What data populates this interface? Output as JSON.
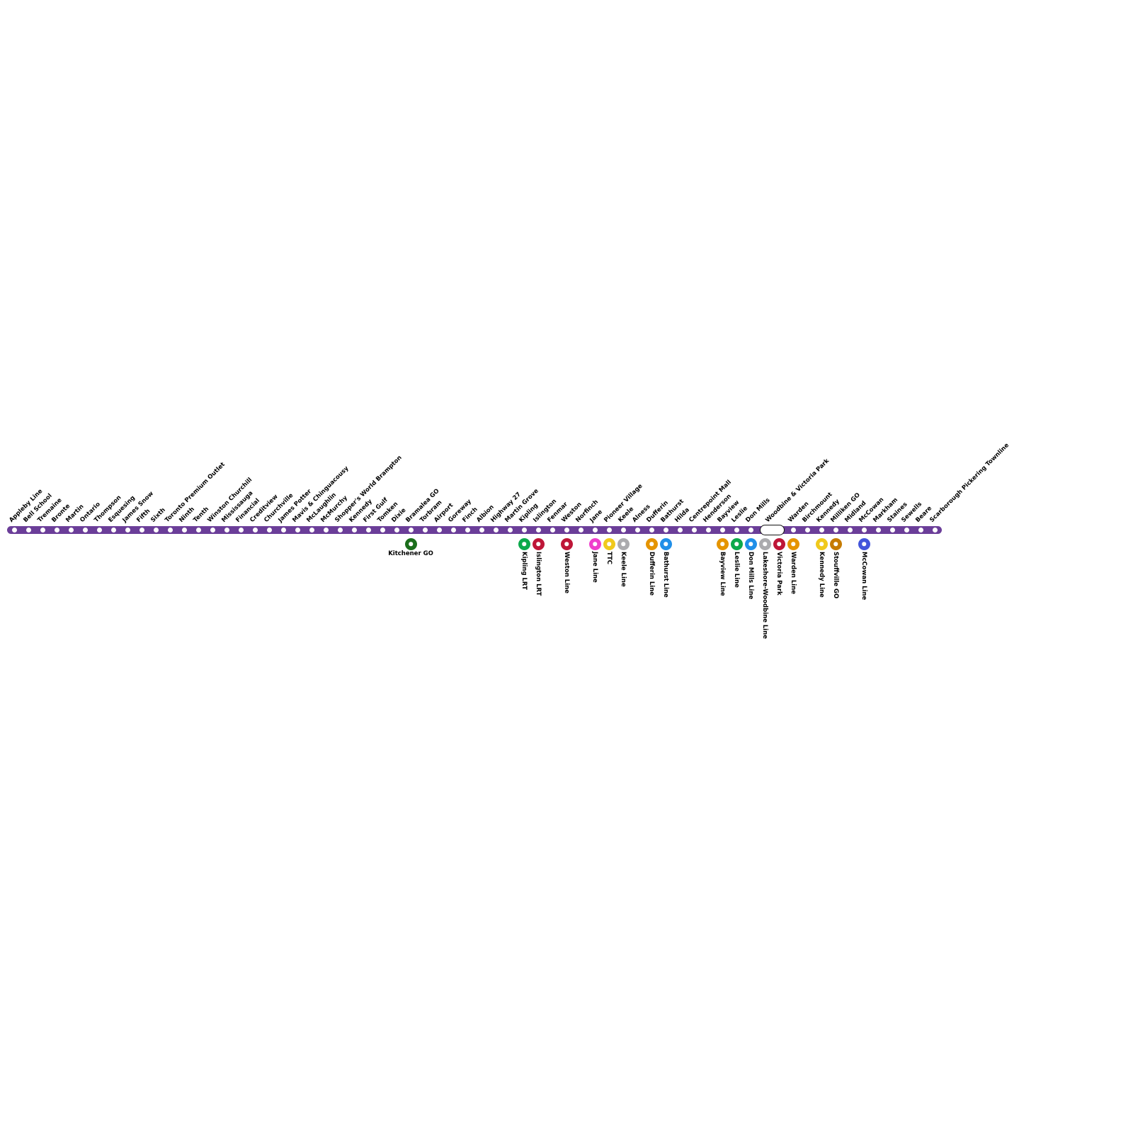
{
  "map": {
    "line_color": "#6B3E99",
    "station_dot_color": "#ffffff",
    "label_color": "#000000",
    "interchange_pill_border_color": "#141414",
    "stations": [
      {
        "name": "Appleby Line"
      },
      {
        "name": "Bell School"
      },
      {
        "name": "Tremaine"
      },
      {
        "name": "Bronte"
      },
      {
        "name": "Martin"
      },
      {
        "name": "Ontario"
      },
      {
        "name": "Thompson"
      },
      {
        "name": "Esquesing"
      },
      {
        "name": "James Snow"
      },
      {
        "name": "Fifth"
      },
      {
        "name": "Sixth"
      },
      {
        "name": "Toronto Premium Outlet"
      },
      {
        "name": "Ninth"
      },
      {
        "name": "Tenth"
      },
      {
        "name": "Winston Churchill"
      },
      {
        "name": "Mississauga"
      },
      {
        "name": "Financial"
      },
      {
        "name": "Creditview"
      },
      {
        "name": "Churchville"
      },
      {
        "name": "James Potter"
      },
      {
        "name": "Mavis & Chinguacousy"
      },
      {
        "name": "McLaughlin"
      },
      {
        "name": "McMurchy"
      },
      {
        "name": "Shopper's World Brampton"
      },
      {
        "name": "Kennedy"
      },
      {
        "name": "First Gulf"
      },
      {
        "name": "Tomken"
      },
      {
        "name": "Dixie"
      },
      {
        "name": "Bramalea GO",
        "connections": [
          {
            "label": "Kitchener GO",
            "color": "#1B6E1B",
            "orientation": "horizontal"
          }
        ]
      },
      {
        "name": "Torbram"
      },
      {
        "name": "Airport"
      },
      {
        "name": "Goreway"
      },
      {
        "name": "Finch"
      },
      {
        "name": "Albion"
      },
      {
        "name": "Highway 27"
      },
      {
        "name": "Martin Grove"
      },
      {
        "name": "Kipling",
        "connections": [
          {
            "label": "Kipling LRT",
            "color": "#0CA94C"
          }
        ]
      },
      {
        "name": "Islington",
        "connections": [
          {
            "label": "Islington LRT",
            "color": "#BE1638"
          }
        ]
      },
      {
        "name": "Fenmar"
      },
      {
        "name": "Weston",
        "connections": [
          {
            "label": "Weston Line",
            "color": "#BE1638"
          }
        ]
      },
      {
        "name": "Norfinch"
      },
      {
        "name": "Jane",
        "connections": [
          {
            "label": "Jane Line",
            "color": "#EF3FCC"
          }
        ]
      },
      {
        "name": "Pioneer Village",
        "connections": [
          {
            "label": "TTC",
            "color": "#F0C91C"
          }
        ]
      },
      {
        "name": "Keele",
        "connections": [
          {
            "label": "Keele Line",
            "color": "#ABABAE"
          }
        ]
      },
      {
        "name": "Alness"
      },
      {
        "name": "Dufferin",
        "connections": [
          {
            "label": "Dufferin Line",
            "color": "#E59400"
          }
        ]
      },
      {
        "name": "Bathurst",
        "connections": [
          {
            "label": "Bathurst Line",
            "color": "#208FE8"
          }
        ]
      },
      {
        "name": "Hilda"
      },
      {
        "name": "Centrepoint Mall"
      },
      {
        "name": "Henderson"
      },
      {
        "name": "Bayview",
        "connections": [
          {
            "label": "Bayview Line",
            "color": "#E59400"
          }
        ]
      },
      {
        "name": "Leslie",
        "connections": [
          {
            "label": "Leslie Line",
            "color": "#0CA94C"
          }
        ]
      },
      {
        "name": "Don Mills",
        "connections": [
          {
            "label": "Don Mills Line",
            "color": "#208FE8"
          }
        ]
      },
      {
        "name": "Woodbine & Victoria Park",
        "marker": "pill",
        "span": 2,
        "connections": [
          {
            "label": "Lakeshore-Woodbine Line",
            "color": "#ABABAE",
            "slot_offset": 0
          },
          {
            "label": "Victoria Park",
            "color": "#BE1638",
            "slot_offset": 1
          }
        ]
      },
      {
        "name": "Warden",
        "connections": [
          {
            "label": "Warden Line",
            "color": "#E59400"
          }
        ]
      },
      {
        "name": "Birchmount"
      },
      {
        "name": "Kennedy",
        "connections": [
          {
            "label": "Kennedy Line",
            "color": "#F0C91C"
          }
        ]
      },
      {
        "name": "Milliken GO",
        "connections": [
          {
            "label": "Stouffville GO",
            "color": "#C67B00"
          }
        ]
      },
      {
        "name": "Midland"
      },
      {
        "name": "McCowan",
        "connections": [
          {
            "label": "McCowan Line",
            "color": "#4355DB"
          }
        ]
      },
      {
        "name": "Markham"
      },
      {
        "name": "Staines"
      },
      {
        "name": "Sewells"
      },
      {
        "name": "Beare"
      },
      {
        "name": "Scarborough Pickering Townline"
      }
    ]
  }
}
